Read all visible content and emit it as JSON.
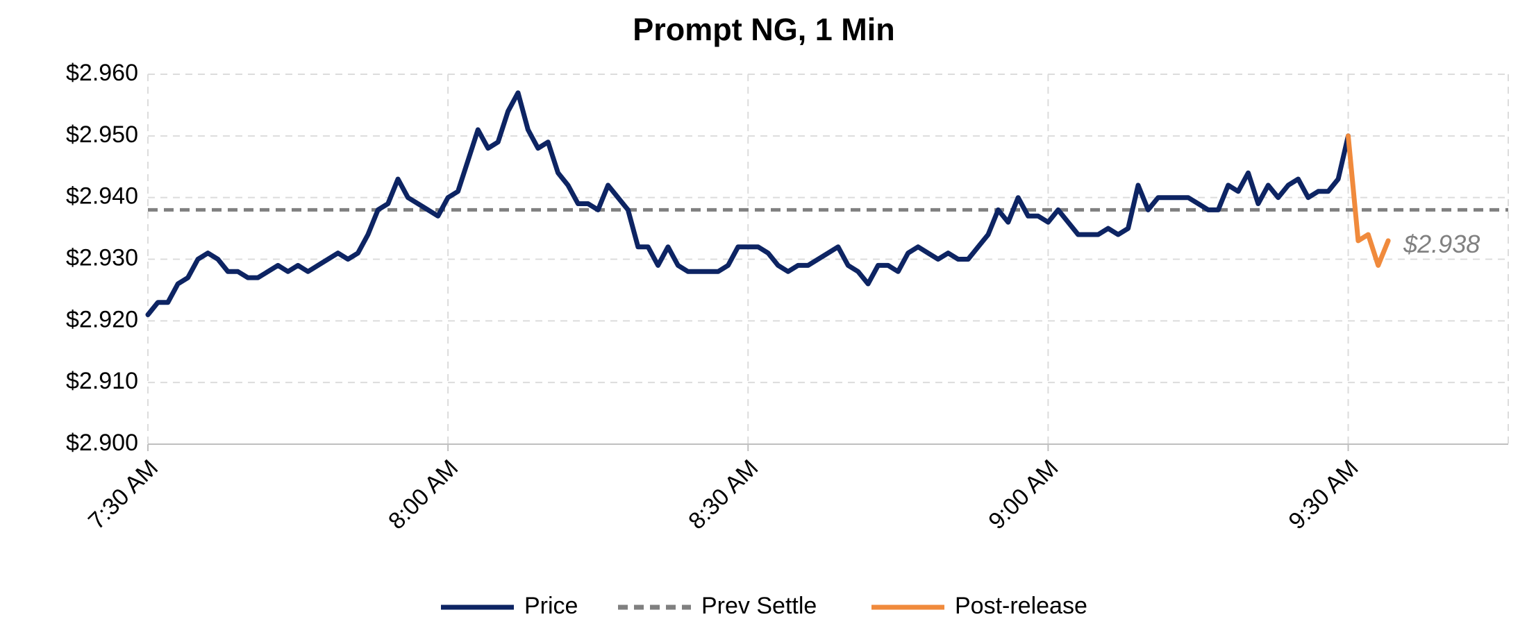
{
  "chart_data": {
    "type": "line",
    "title": "Prompt NG, 1 Min",
    "xlim": [
      "7:30",
      "9:46"
    ],
    "xticks": [
      {
        "value": "7:30",
        "label": "7:30 AM"
      },
      {
        "value": "8:00",
        "label": "8:00 AM"
      },
      {
        "value": "8:30",
        "label": "8:30 AM"
      },
      {
        "value": "9:00",
        "label": "9:00 AM"
      },
      {
        "value": "9:30",
        "label": "9:30 AM"
      }
    ],
    "ylim": [
      2.9,
      2.96
    ],
    "yticks": [
      {
        "value": 2.9,
        "label": "$2.900"
      },
      {
        "value": 2.91,
        "label": "$2.910"
      },
      {
        "value": 2.92,
        "label": "$2.920"
      },
      {
        "value": 2.93,
        "label": "$2.930"
      },
      {
        "value": 2.94,
        "label": "$2.940"
      },
      {
        "value": 2.95,
        "label": "$2.950"
      },
      {
        "value": 2.96,
        "label": "$2.960"
      }
    ],
    "grid": true,
    "series": [
      {
        "name": "Price",
        "color": "#0d2463",
        "x": [
          "7:30",
          "7:31",
          "7:32",
          "7:33",
          "7:34",
          "7:35",
          "7:36",
          "7:37",
          "7:38",
          "7:39",
          "7:40",
          "7:41",
          "7:42",
          "7:43",
          "7:44",
          "7:45",
          "7:46",
          "7:47",
          "7:48",
          "7:49",
          "7:50",
          "7:51",
          "7:52",
          "7:53",
          "7:54",
          "7:55",
          "7:56",
          "7:57",
          "7:58",
          "7:59",
          "8:00",
          "8:01",
          "8:02",
          "8:03",
          "8:04",
          "8:05",
          "8:06",
          "8:07",
          "8:08",
          "8:09",
          "8:10",
          "8:11",
          "8:12",
          "8:13",
          "8:14",
          "8:15",
          "8:16",
          "8:17",
          "8:18",
          "8:19",
          "8:20",
          "8:21",
          "8:22",
          "8:23",
          "8:24",
          "8:25",
          "8:26",
          "8:27",
          "8:28",
          "8:29",
          "8:30",
          "8:31",
          "8:32",
          "8:33",
          "8:34",
          "8:35",
          "8:36",
          "8:37",
          "8:38",
          "8:39",
          "8:40",
          "8:41",
          "8:42",
          "8:43",
          "8:44",
          "8:45",
          "8:46",
          "8:47",
          "8:48",
          "8:49",
          "8:50",
          "8:51",
          "8:52",
          "8:53",
          "8:54",
          "8:55",
          "8:56",
          "8:57",
          "8:58",
          "8:59",
          "9:00",
          "9:01",
          "9:02",
          "9:03",
          "9:04",
          "9:05",
          "9:06",
          "9:07",
          "9:08",
          "9:09",
          "9:10",
          "9:11",
          "9:12",
          "9:13",
          "9:14",
          "9:15",
          "9:16",
          "9:17",
          "9:18",
          "9:19",
          "9:20",
          "9:21",
          "9:22",
          "9:23",
          "9:24",
          "9:25",
          "9:26",
          "9:27",
          "9:28",
          "9:29",
          "9:30"
        ],
        "values": [
          2.921,
          2.923,
          2.923,
          2.926,
          2.927,
          2.93,
          2.931,
          2.93,
          2.928,
          2.928,
          2.927,
          2.927,
          2.928,
          2.929,
          2.928,
          2.929,
          2.928,
          2.929,
          2.93,
          2.931,
          2.93,
          2.931,
          2.934,
          2.938,
          2.939,
          2.943,
          2.94,
          2.939,
          2.938,
          2.937,
          2.94,
          2.941,
          2.946,
          2.951,
          2.948,
          2.949,
          2.954,
          2.957,
          2.951,
          2.948,
          2.949,
          2.944,
          2.942,
          2.939,
          2.939,
          2.938,
          2.942,
          2.94,
          2.938,
          2.932,
          2.932,
          2.929,
          2.932,
          2.929,
          2.928,
          2.928,
          2.928,
          2.928,
          2.929,
          2.932,
          2.932,
          2.932,
          2.931,
          2.929,
          2.928,
          2.929,
          2.929,
          2.93,
          2.931,
          2.932,
          2.929,
          2.928,
          2.926,
          2.929,
          2.929,
          2.928,
          2.931,
          2.932,
          2.931,
          2.93,
          2.931,
          2.93,
          2.93,
          2.932,
          2.934,
          2.938,
          2.936,
          2.94,
          2.937,
          2.937,
          2.936,
          2.938,
          2.936,
          2.934,
          2.934,
          2.934,
          2.935,
          2.934,
          2.935,
          2.942,
          2.938,
          2.94,
          2.94,
          2.94,
          2.94,
          2.939,
          2.938,
          2.938,
          2.942,
          2.941,
          2.944,
          2.939,
          2.942,
          2.94,
          2.942,
          2.943,
          2.94,
          2.941,
          2.941,
          2.943,
          2.95
        ]
      },
      {
        "name": "Post-release",
        "color": "#f08a3c",
        "x": [
          "9:30",
          "9:31",
          "9:32",
          "9:33",
          "9:34"
        ],
        "values": [
          2.95,
          2.933,
          2.934,
          2.929,
          2.933
        ]
      }
    ],
    "reference_line": {
      "name": "Prev Settle",
      "value": 2.938,
      "color": "#808080"
    },
    "annotation": {
      "text": "$2.938",
      "value": 2.938
    }
  }
}
